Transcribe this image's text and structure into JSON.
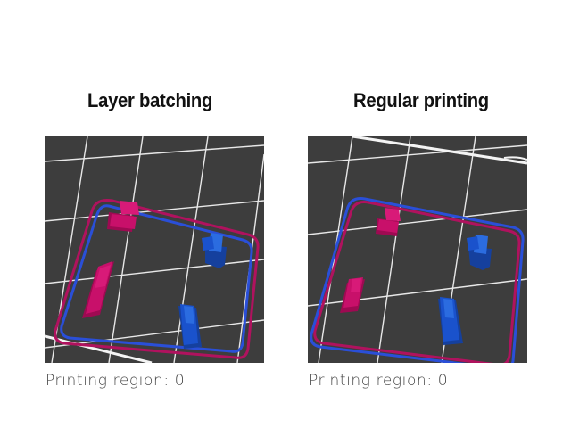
{
  "panels": [
    {
      "title": "Layer batching",
      "caption": "Printing region: 0"
    },
    {
      "title": "Regular printing",
      "caption": "Printing region: 0"
    }
  ],
  "colors": {
    "background": "#ffffff",
    "build_plate": "#3d3d3d",
    "grid_lines": "#e8e8e8",
    "magenta_part": "#c8106a",
    "blue_part": "#1a52cc",
    "blue_outline": "#2a4fd8",
    "magenta_outline": "#b0125e"
  }
}
